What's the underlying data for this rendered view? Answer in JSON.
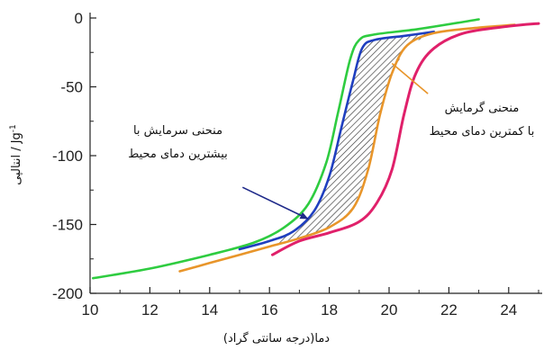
{
  "chart_data": {
    "type": "line",
    "xlabel": "دما(درجه سانتی گراد)",
    "ylabel": "انتالپی / Jg",
    "ylabel_superscript": "-1",
    "xlim": [
      10,
      25
    ],
    "ylim": [
      -200,
      0
    ],
    "xticks": [
      "10",
      "12",
      "14",
      "16",
      "18",
      "20",
      "22",
      "24"
    ],
    "yticks": [
      "0",
      "-50",
      "-100",
      "-150",
      "-200"
    ],
    "grid": false,
    "series": [
      {
        "color": "#2ecc40",
        "points": [
          [
            10.1,
            -189
          ],
          [
            12,
            -182
          ],
          [
            14,
            -172
          ],
          [
            15.5,
            -163
          ],
          [
            16.5,
            -152
          ],
          [
            17.3,
            -135
          ],
          [
            17.9,
            -105
          ],
          [
            18.3,
            -68
          ],
          [
            18.7,
            -30
          ],
          [
            19.0,
            -16
          ],
          [
            19.5,
            -12
          ],
          [
            21,
            -8
          ],
          [
            23,
            -1
          ]
        ]
      },
      {
        "color": "#1f3fbf",
        "points": [
          [
            15,
            -168
          ],
          [
            16,
            -162
          ],
          [
            16.8,
            -155
          ],
          [
            17.5,
            -140
          ],
          [
            18.0,
            -115
          ],
          [
            18.4,
            -80
          ],
          [
            18.8,
            -45
          ],
          [
            19.1,
            -22
          ],
          [
            19.5,
            -16
          ],
          [
            20.5,
            -13
          ],
          [
            21.5,
            -10
          ]
        ]
      },
      {
        "color": "#e8952a",
        "points": [
          [
            13,
            -184
          ],
          [
            14,
            -178
          ],
          [
            15,
            -172
          ],
          [
            16,
            -166
          ],
          [
            17,
            -160
          ],
          [
            18,
            -152
          ],
          [
            18.8,
            -138
          ],
          [
            19.3,
            -110
          ],
          [
            19.7,
            -70
          ],
          [
            20.1,
            -40
          ],
          [
            20.6,
            -20
          ],
          [
            21.5,
            -11
          ],
          [
            23,
            -7
          ],
          [
            24.2,
            -5
          ]
        ]
      },
      {
        "color": "#e0206a",
        "points": [
          [
            16.1,
            -172
          ],
          [
            17,
            -162
          ],
          [
            18,
            -156
          ],
          [
            19,
            -148
          ],
          [
            19.6,
            -134
          ],
          [
            20.1,
            -110
          ],
          [
            20.5,
            -70
          ],
          [
            20.9,
            -40
          ],
          [
            21.5,
            -22
          ],
          [
            22.5,
            -11
          ],
          [
            24,
            -6
          ],
          [
            25,
            -4
          ]
        ]
      }
    ],
    "annotations": [
      {
        "lines": [
          "منحنی سرمایش با",
          "بیشترین دمای محیط"
        ]
      },
      {
        "lines": [
          "منحنی گرمایش",
          "با کمترین دمای محیط"
        ]
      }
    ]
  }
}
